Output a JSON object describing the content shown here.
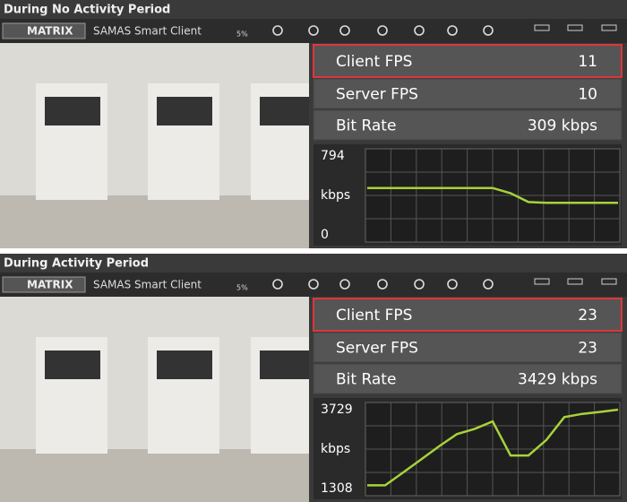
{
  "panels": [
    {
      "title": "During No Activity Period",
      "toolbar": {
        "logo": "MATRIX",
        "app": "SAMAS Smart Client",
        "cpu": "5%"
      },
      "stats": [
        {
          "label": "Client FPS",
          "value": 11
        },
        {
          "label": "Server FPS",
          "value": 10
        },
        {
          "label": "Bit Rate",
          "value": "309 kbps"
        }
      ],
      "graph": {
        "y_max": 794,
        "y_unit": "kbps",
        "y_min": 0,
        "values": [
          472,
          472,
          472,
          472,
          472,
          472,
          472,
          472,
          420,
          330,
          322,
          322,
          322,
          322,
          322
        ]
      }
    },
    {
      "title": "During Activity Period",
      "toolbar": {
        "logo": "MATRIX",
        "app": "SAMAS Smart Client",
        "cpu": "5%"
      },
      "stats": [
        {
          "label": "Client FPS",
          "value": 23
        },
        {
          "label": "Server FPS",
          "value": 23
        },
        {
          "label": "Bit Rate",
          "value": "3429 kbps"
        }
      ],
      "graph": {
        "y_max": 3729,
        "y_unit": "kbps",
        "y_min": 1308,
        "values": [
          1406,
          1406,
          1800,
          2200,
          2600,
          2977,
          3140,
          3369,
          2322,
          2322,
          2800,
          3500,
          3600,
          3660,
          3729
        ]
      }
    }
  ]
}
